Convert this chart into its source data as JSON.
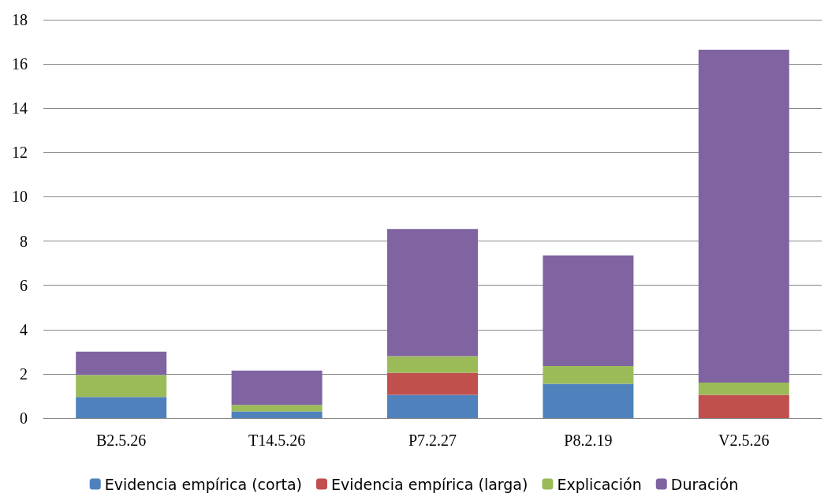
{
  "chart_data": {
    "type": "bar",
    "stacked": true,
    "categories": [
      "B2.5.26",
      "T14.5.26",
      "P7.2.27",
      "P8.2.19",
      "V2.5.26"
    ],
    "series": [
      {
        "name": "Evidencia empírica (corta)",
        "color": "#4f81bd",
        "values": [
          0.95,
          0.3,
          1.05,
          1.55,
          0
        ]
      },
      {
        "name": "Evidencia empírica (larga)",
        "color": "#c0504d",
        "values": [
          0,
          0,
          1.0,
          0,
          1.05
        ]
      },
      {
        "name": "Explicación",
        "color": "#9bbb59",
        "values": [
          1.0,
          0.3,
          0.75,
          0.8,
          0.55
        ]
      },
      {
        "name": "Duración",
        "color": "#8064a2",
        "values": [
          1.05,
          1.55,
          5.75,
          5.0,
          15.05
        ]
      }
    ],
    "ylim": [
      0,
      18
    ],
    "yticks": [
      0,
      2,
      4,
      6,
      8,
      10,
      12,
      14,
      16,
      18
    ],
    "grid": "y",
    "legend": "bottom"
  }
}
